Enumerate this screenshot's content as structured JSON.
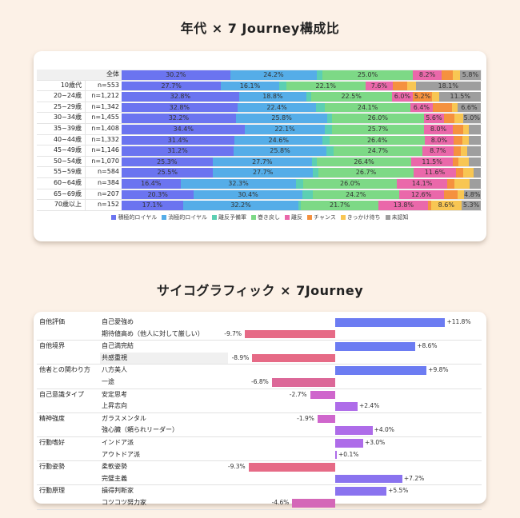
{
  "chart_data": [
    {
      "type": "bar",
      "orientation": "horizontal-stacked-100",
      "title": "年代 × 7 Journey構成比",
      "categories": [
        "全体",
        "10歳代",
        "20~24歳",
        "25~29歳",
        "30~34歳",
        "35~39歳",
        "40~44歳",
        "45~49歳",
        "50~54歳",
        "55~59歳",
        "60~64歳",
        "65~69歳",
        "70歳以上"
      ],
      "sample_sizes": [
        "",
        "n=553",
        "n=1,212",
        "n=1,342",
        "n=1,455",
        "n=1,408",
        "n=1,332",
        "n=1,146",
        "n=1,070",
        "n=584",
        "n=384",
        "n=207",
        "n=152"
      ],
      "series": [
        {
          "name": "積極的ロイヤル",
          "color": "#6b74f0",
          "values": [
            30.2,
            27.7,
            32.8,
            32.8,
            32.2,
            34.4,
            31.4,
            31.2,
            25.3,
            25.5,
            16.4,
            20.3,
            17.1
          ]
        },
        {
          "name": "消極的ロイヤル",
          "color": "#55ade8",
          "values": [
            24.2,
            16.1,
            18.8,
            22.4,
            25.8,
            22.1,
            24.6,
            25.8,
            27.7,
            27.7,
            32.3,
            30.4,
            32.2
          ]
        },
        {
          "name": "離反予備軍",
          "color": "#5ccfb3",
          "values": [
            1.6,
            2.0,
            1.3,
            2.5,
            1.2,
            2.0,
            2.0,
            2.0,
            1.3,
            1.5,
            2.0,
            3.0,
            0.6
          ]
        },
        {
          "name": "巻き戻し",
          "color": "#7dd986",
          "values": [
            25.0,
            22.1,
            22.5,
            24.1,
            26.0,
            25.7,
            26.4,
            24.7,
            26.4,
            26.7,
            26.0,
            24.2,
            21.7
          ]
        },
        {
          "name": "離反",
          "color": "#ea68aa",
          "values": [
            8.2,
            7.6,
            6.0,
            6.4,
            5.6,
            8.0,
            8.0,
            8.7,
            11.5,
            11.6,
            14.1,
            12.6,
            13.8
          ]
        },
        {
          "name": "チャンス",
          "color": "#f5913f",
          "values": [
            3.0,
            4.1,
            5.2,
            5.4,
            3.0,
            2.8,
            2.5,
            2.0,
            1.5,
            2.0,
            2.0,
            3.8,
            0.7
          ]
        },
        {
          "name": "きっかけ待ち",
          "color": "#f8c653",
          "values": [
            2.0,
            2.3,
            2.2,
            1.6,
            2.4,
            1.7,
            1.8,
            1.9,
            2.9,
            3.0,
            4.3,
            1.8,
            8.6
          ]
        },
        {
          "name": "未認知",
          "color": "#9e9e9e",
          "values": [
            5.8,
            18.1,
            11.5,
            6.6,
            5.0,
            3.3,
            3.3,
            3.7,
            3.4,
            2.0,
            3.0,
            4.8,
            5.3
          ]
        }
      ],
      "labels_shown": [
        [
          "30.2%",
          "24.2%",
          "",
          "25.0%",
          "8.2%",
          "",
          "",
          "5.8%"
        ],
        [
          "27.7%",
          "16.1%",
          "",
          "22.1%",
          "7.6%",
          "",
          "",
          "18.1%"
        ],
        [
          "32.8%",
          "18.8%",
          "",
          "22.5%",
          "6.0%",
          "5.2%",
          "",
          "11.5%"
        ],
        [
          "32.8%",
          "22.4%",
          "",
          "24.1%",
          "6.4%",
          "",
          "",
          "6.6%"
        ],
        [
          "32.2%",
          "25.8%",
          "",
          "26.0%",
          "5.6%",
          "",
          "",
          "5.0%"
        ],
        [
          "34.4%",
          "22.1%",
          "",
          "25.7%",
          "8.0%",
          "",
          "",
          ""
        ],
        [
          "31.4%",
          "24.6%",
          "",
          "26.4%",
          "8.0%",
          "",
          "",
          ""
        ],
        [
          "31.2%",
          "25.8%",
          "",
          "24.7%",
          "8.7%",
          "",
          "",
          ""
        ],
        [
          "25.3%",
          "27.7%",
          "",
          "26.4%",
          "11.5%",
          "",
          "",
          ""
        ],
        [
          "25.5%",
          "27.7%",
          "",
          "26.7%",
          "11.6%",
          "",
          "",
          ""
        ],
        [
          "16.4%",
          "32.3%",
          "",
          "26.0%",
          "14.1%",
          "",
          "",
          ""
        ],
        [
          "20.3%",
          "30.4%",
          "",
          "24.2%",
          "12.6%",
          "",
          "",
          "4.8%"
        ],
        [
          "17.1%",
          "32.2%",
          "",
          "21.7%",
          "13.8%",
          "",
          "8.6%",
          "5.3%"
        ]
      ],
      "legend_position": "bottom",
      "xlim": [
        0,
        100
      ]
    },
    {
      "type": "bar",
      "orientation": "horizontal-diverging",
      "title": "サイコグラフィック × 7Journey",
      "groups": [
        {
          "category": "自他評価",
          "items": [
            {
              "label": "自己愛強め",
              "value": 11.8,
              "text": "+11.8%"
            },
            {
              "label": "期待値高め（他人に対して厳しい）",
              "value": -9.7,
              "text": "-9.7%"
            }
          ]
        },
        {
          "category": "自他境界",
          "items": [
            {
              "label": "自己満完結",
              "value": 8.6,
              "text": "+8.6%"
            },
            {
              "label": "共感重視",
              "value": -8.9,
              "text": "-8.9%",
              "highlight": true
            }
          ]
        },
        {
          "category": "他者との関わり方",
          "items": [
            {
              "label": "八方美人",
              "value": 9.8,
              "text": "+9.8%"
            },
            {
              "label": "一途",
              "value": -6.8,
              "text": "-6.8%"
            }
          ]
        },
        {
          "category": "自己意識タイプ",
          "items": [
            {
              "label": "安定思考",
              "value": -2.7,
              "text": "-2.7%"
            },
            {
              "label": "上昇志向",
              "value": 2.4,
              "text": "+2.4%"
            }
          ]
        },
        {
          "category": "精神強度",
          "items": [
            {
              "label": "ガラスメンタル",
              "value": -1.9,
              "text": "-1.9%"
            },
            {
              "label": "強心臓（頼られリーダー）",
              "value": 4.0,
              "text": "+4.0%"
            }
          ]
        },
        {
          "category": "行動嗜好",
          "items": [
            {
              "label": "インドア派",
              "value": 3.0,
              "text": "+3.0%"
            },
            {
              "label": "アウトドア派",
              "value": 0.1,
              "text": "+0.1%"
            }
          ]
        },
        {
          "category": "行動姿勢",
          "items": [
            {
              "label": "柔軟姿勢",
              "value": -9.3,
              "text": "-9.3%"
            },
            {
              "label": "完璧主義",
              "value": 7.2,
              "text": "+7.2%"
            }
          ]
        },
        {
          "category": "行動原理",
          "items": [
            {
              "label": "損得判断家",
              "value": 5.5,
              "text": "+5.5%"
            },
            {
              "label": "コツコツ努力家",
              "value": -4.6,
              "text": "-4.6%"
            }
          ]
        }
      ],
      "xlim": [
        -12,
        12
      ]
    }
  ],
  "chart1": {
    "title": "年代 × 7 Journey構成比",
    "total_label": "全体"
  },
  "chart2": {
    "title": "サイコグラフィック × 7Journey"
  }
}
